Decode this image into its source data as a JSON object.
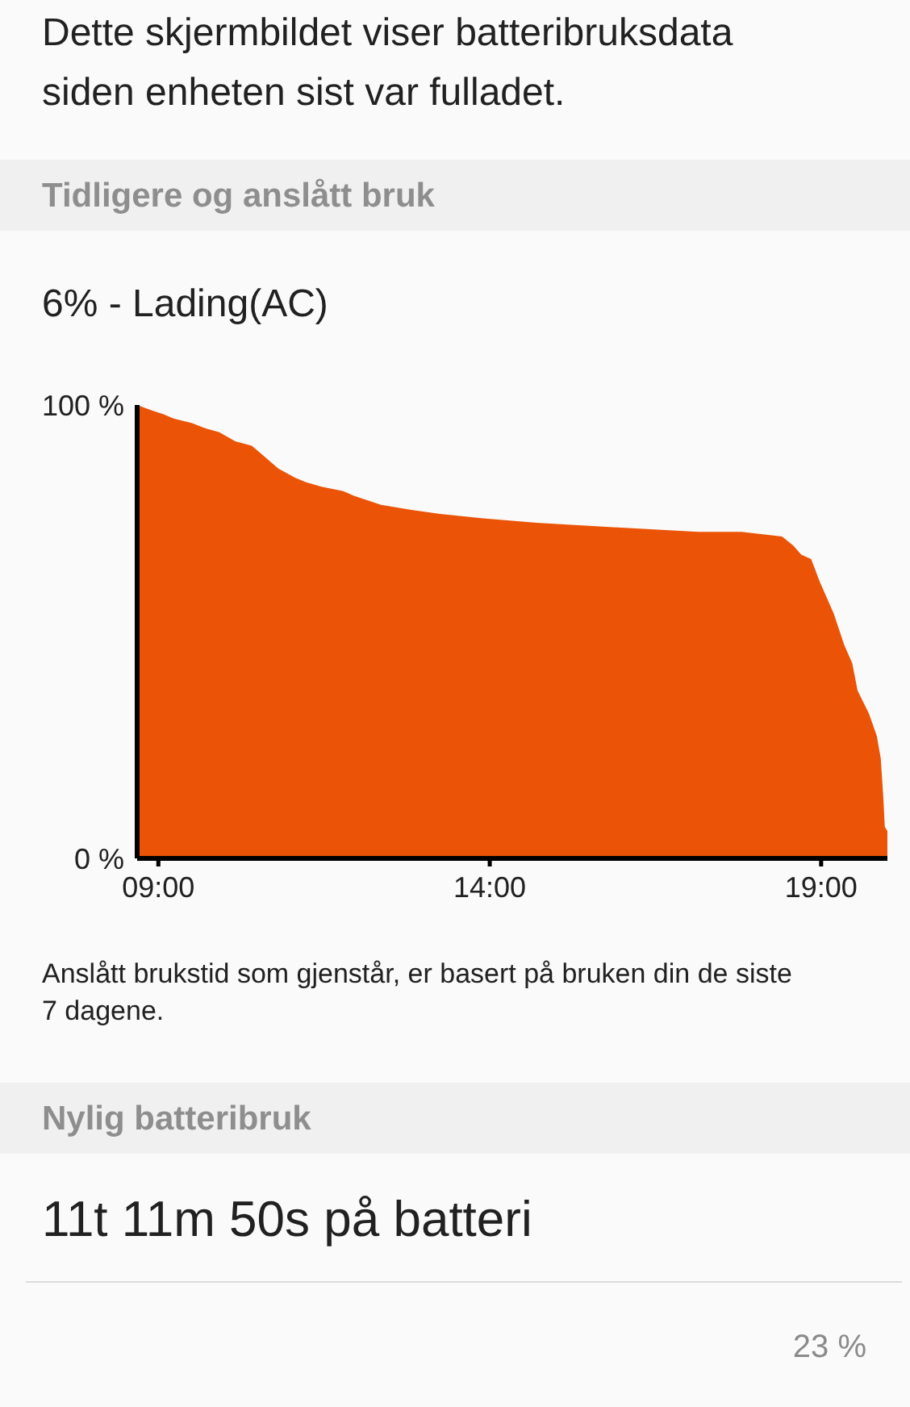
{
  "chart_data": {
    "type": "area",
    "title": "Dette skjermbildet viser batteribruksdata siden enheten sist var fulladet.",
    "subtitle": "Tidligere og anslått bruk",
    "annotations": [
      "6% - Lading(AC)",
      "Anslått brukstid som gjenstår, er basert på bruken din de siste 7 dagene.",
      "Nylig batteribruk",
      "11t 11m 50s på batteri",
      "23 %"
    ],
    "x": [
      8.68,
      8.86,
      9.07,
      9.23,
      9.51,
      9.68,
      9.92,
      10.16,
      10.41,
      10.57,
      10.81,
      11.06,
      11.22,
      11.46,
      11.79,
      11.95,
      12.36,
      12.76,
      13.25,
      13.9,
      14.71,
      15.93,
      17.15,
      17.8,
      18.41,
      18.58,
      18.7,
      18.85,
      18.98,
      19.19,
      19.35,
      19.47,
      19.55,
      19.72,
      19.84,
      19.9,
      19.94,
      19.96,
      20.0
    ],
    "values": [
      100,
      99,
      98,
      97,
      96,
      95,
      94,
      92,
      91,
      89,
      86,
      84,
      83,
      82,
      81,
      80,
      78,
      77,
      76,
      75,
      74,
      73,
      72,
      72,
      71,
      69,
      67,
      66,
      61,
      54,
      47,
      43,
      37,
      32,
      27,
      22,
      13,
      7,
      6
    ],
    "color": "#eb5406",
    "xlim": [
      8.68,
      20.0
    ],
    "xticks": [
      {
        "value": 9,
        "label": "09:00"
      },
      {
        "value": 14,
        "label": "14:00"
      },
      {
        "value": 19,
        "label": "19:00"
      }
    ],
    "ylim": [
      0,
      100
    ],
    "yticks": [
      {
        "value": 0,
        "label": "0 %"
      },
      {
        "value": 100,
        "label": "100 %"
      }
    ]
  }
}
